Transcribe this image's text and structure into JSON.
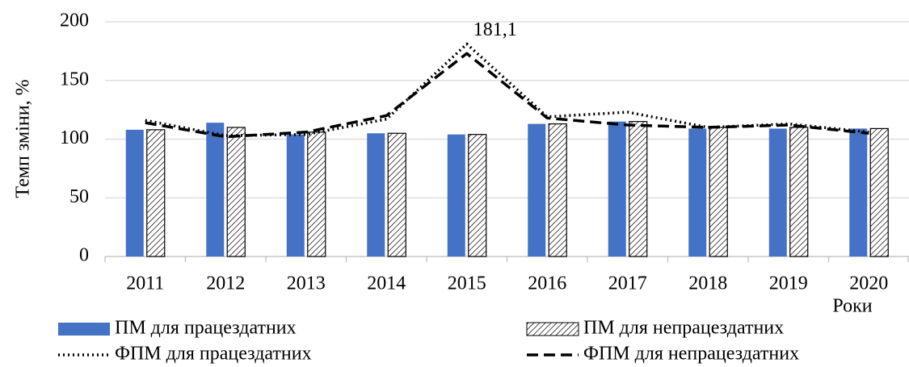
{
  "chart_data": {
    "type": "bar",
    "y_label": "Темп зміни, %",
    "x_label": "Роки",
    "categories": [
      "2011",
      "2012",
      "2013",
      "2014",
      "2015",
      "2016",
      "2017",
      "2018",
      "2019",
      "2020"
    ],
    "series": [
      {
        "name": "ПМ для працездатних",
        "type": "bar",
        "color": "#4472c4",
        "values": [
          108,
          114,
          104,
          105,
          104,
          113,
          115,
          109,
          109,
          109
        ]
      },
      {
        "name": "ПМ для непрацездатних",
        "type": "bar",
        "color": "#000000",
        "hatch": true,
        "values": [
          108,
          110,
          106,
          105,
          104,
          113,
          115,
          110,
          110,
          109
        ]
      },
      {
        "name": "ФПМ для працездатних",
        "type": "line",
        "color": "#000000",
        "dash": "dot",
        "values": [
          116,
          103,
          104,
          117,
          181.1,
          119,
          123,
          110,
          113,
          106
        ],
        "value_labels": [
          null,
          null,
          null,
          null,
          "181,1",
          null,
          null,
          null,
          null,
          null
        ]
      },
      {
        "name": "ФПМ для непрацездатних",
        "type": "line",
        "color": "#000000",
        "dash": "dash",
        "values": [
          114,
          102,
          106,
          120,
          173,
          118,
          112,
          110,
          112,
          105
        ]
      }
    ],
    "ylim": [
      0,
      200
    ],
    "yticks": [
      0,
      50,
      100,
      150,
      200
    ],
    "grid": true
  }
}
